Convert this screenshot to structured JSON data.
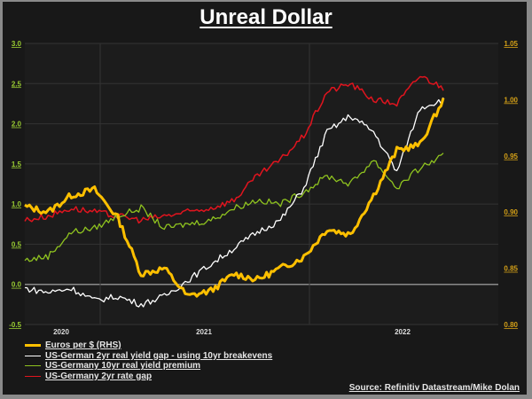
{
  "title": "Unreal Dollar",
  "source": "Source: Refinitiv Datastream/Mike Dolan",
  "colors": {
    "background": "#181818",
    "euros": "#ffc000",
    "real_yield_gap": "#ffffff",
    "real_yield_premium": "#8fc31f",
    "rate_gap": "#e0141e",
    "left_axis_text": "#9acd32",
    "right_axis_text": "#d4a017"
  },
  "legend": [
    {
      "label": "Euros per $ (RHS)",
      "color": "#ffc000",
      "width": 3
    },
    {
      "label": "US-German 2yr real yield gap - using 10yr breakevens",
      "color": "#ffffff",
      "width": 1.5
    },
    {
      "label": "US-Germany 10yr real yield premium",
      "color": "#8fc31f",
      "width": 1.5
    },
    {
      "label": "US-Germany 2yr rate gap",
      "color": "#e0141e",
      "width": 1.5
    }
  ],
  "chart_data": {
    "type": "line",
    "title": "Unreal Dollar",
    "xlabel": "",
    "ylabel": "",
    "x_tick_labels": [
      "2020",
      "2021",
      "2022"
    ],
    "left_axis": {
      "ticks": [
        "3.0",
        "2.5",
        "2.0",
        "1.5",
        "1.0",
        "0.5",
        "0.0",
        "-0.5"
      ],
      "ylim": [
        -0.5,
        3.0
      ]
    },
    "right_axis": {
      "ticks": [
        "1.05",
        "1.00",
        "0.95",
        "0.90",
        "0.85",
        "0.80"
      ],
      "ylim": [
        0.8,
        1.05
      ]
    },
    "x": [
      "2019-10",
      "2019-12",
      "2020-02",
      "2020-04",
      "2020-06",
      "2020-08",
      "2020-10",
      "2020-12",
      "2021-02",
      "2021-04",
      "2021-06",
      "2021-08",
      "2021-10",
      "2021-12",
      "2022-02",
      "2022-04",
      "2022-06",
      "2022-08",
      "2022-09"
    ],
    "series": [
      {
        "name": "Euros per $ (RHS)",
        "axis": "right",
        "values": [
          0.905,
          0.9,
          0.915,
          0.92,
          0.895,
          0.845,
          0.85,
          0.825,
          0.83,
          0.845,
          0.84,
          0.85,
          0.86,
          0.885,
          0.88,
          0.915,
          0.955,
          0.96,
          1.0
        ]
      },
      {
        "name": "US-German 2yr real yield gap - using 10yr breakevens",
        "axis": "left",
        "values": [
          -0.05,
          -0.1,
          -0.05,
          -0.2,
          -0.15,
          -0.25,
          -0.15,
          0.05,
          0.25,
          0.45,
          0.65,
          0.8,
          1.2,
          1.9,
          2.1,
          1.9,
          1.4,
          2.2,
          2.3
        ]
      },
      {
        "name": "US-Germany 10yr real yield premium",
        "axis": "left",
        "values": [
          0.3,
          0.35,
          0.65,
          0.7,
          0.85,
          0.95,
          0.7,
          0.75,
          0.8,
          0.95,
          1.05,
          1.0,
          1.15,
          1.35,
          1.25,
          1.55,
          1.2,
          1.45,
          1.6
        ]
      },
      {
        "name": "US-Germany 2yr rate gap",
        "axis": "left",
        "values": [
          0.8,
          0.85,
          0.95,
          0.9,
          0.85,
          0.8,
          0.85,
          0.9,
          0.95,
          1.05,
          1.35,
          1.55,
          1.85,
          2.4,
          2.5,
          2.3,
          2.25,
          2.6,
          2.45
        ]
      }
    ],
    "grid": true,
    "legend_position": "bottom-left"
  }
}
